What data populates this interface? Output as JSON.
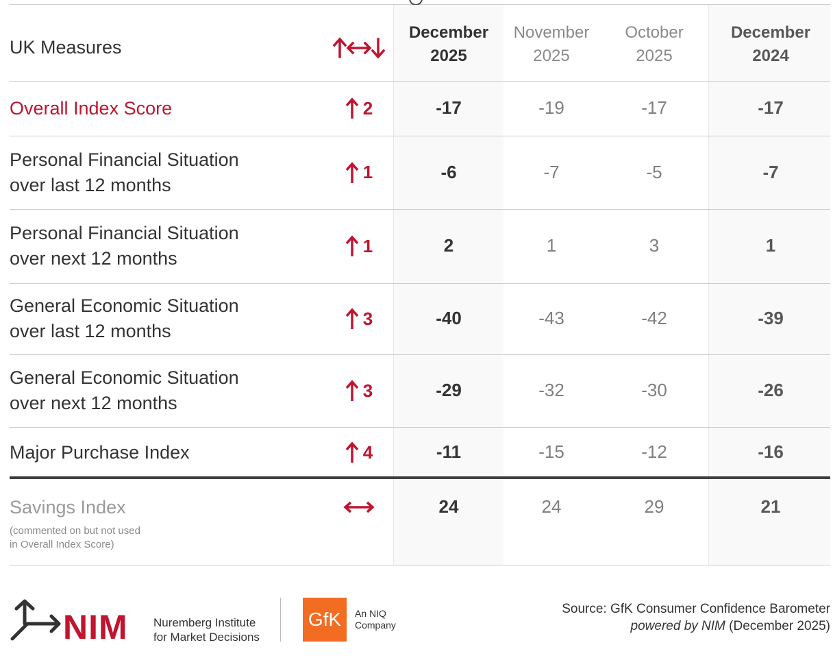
{
  "chart_data": {
    "type": "table",
    "header": {
      "measure_label": "UK Measures",
      "change_symbol": "↑↔↓",
      "columns": [
        {
          "line1": "December",
          "line2": "2025"
        },
        {
          "line1": "November",
          "line2": "2025"
        },
        {
          "line1": "October",
          "line2": "2025"
        },
        {
          "line1": "December",
          "line2": "2024"
        }
      ]
    },
    "rows": [
      {
        "label": [
          "Overall Index Score"
        ],
        "direction": "up",
        "change": "2",
        "values": [
          "-17",
          "-19",
          "-17",
          "-17"
        ]
      },
      {
        "label": [
          "Personal Financial Situation",
          "over last 12 months"
        ],
        "direction": "up",
        "change": "1",
        "values": [
          "-6",
          "-7",
          "-5",
          "-7"
        ]
      },
      {
        "label": [
          "Personal Financial Situation",
          "over next 12 months"
        ],
        "direction": "up",
        "change": "1",
        "values": [
          "2",
          "1",
          "3",
          "1"
        ]
      },
      {
        "label": [
          "General Economic Situation",
          "over last 12 months"
        ],
        "direction": "up",
        "change": "3",
        "values": [
          "-40",
          "-43",
          "-42",
          "-39"
        ]
      },
      {
        "label": [
          "General Economic Situation",
          "over next 12 months"
        ],
        "direction": "up",
        "change": "3",
        "values": [
          "-29",
          "-32",
          "-30",
          "-26"
        ]
      },
      {
        "label": [
          "Major Purchase Index"
        ],
        "direction": "up",
        "change": "4",
        "values": [
          "-11",
          "-15",
          "-12",
          "-16"
        ]
      },
      {
        "label": [
          "Savings Index"
        ],
        "direction": "flat",
        "change": "",
        "values": [
          "24",
          "24",
          "29",
          "21"
        ],
        "note": [
          "(commented on but not used",
          "in Overall Index Score)"
        ]
      }
    ]
  },
  "footer": {
    "nim_name": "NIM",
    "nim_subtitle": [
      "Nuremberg Institute",
      "for Market Decisions"
    ],
    "gfk_name": "GfK",
    "gfk_subtitle": [
      "An NIQ",
      "Company"
    ],
    "source_line1": "Source: GfK Consumer Confidence Barometer",
    "source_line2_italic": "powered by NIM",
    "source_line2_rest": " (December 2025)"
  },
  "colors": {
    "accent": "#c0142f",
    "gfk_orange": "#f26c21",
    "dark_text": "#333333",
    "muted_text": "#7f7f7f"
  }
}
